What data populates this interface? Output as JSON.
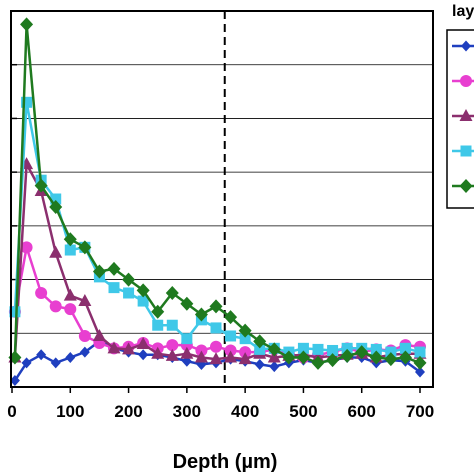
{
  "chart_data": {
    "type": "line",
    "xlabel": "Depth (µm)",
    "legend_title": "lay",
    "legend_position": "top-right",
    "xlim": [
      0,
      720
    ],
    "xticks": [
      0,
      100,
      200,
      300,
      400,
      500,
      600,
      700
    ],
    "ylim": [
      0,
      7
    ],
    "grid": true,
    "reference_line_x": 365,
    "series": [
      {
        "color": "#1f3fbf",
        "marker": "diamond-small",
        "points": [
          [
            5,
            0.12
          ],
          [
            25,
            0.45
          ],
          [
            50,
            0.6
          ],
          [
            75,
            0.45
          ],
          [
            100,
            0.55
          ],
          [
            125,
            0.65
          ],
          [
            150,
            0.85
          ],
          [
            175,
            0.72
          ],
          [
            200,
            0.65
          ],
          [
            225,
            0.6
          ],
          [
            250,
            0.6
          ],
          [
            275,
            0.55
          ],
          [
            300,
            0.48
          ],
          [
            325,
            0.42
          ],
          [
            350,
            0.45
          ],
          [
            375,
            0.52
          ],
          [
            400,
            0.48
          ],
          [
            425,
            0.42
          ],
          [
            450,
            0.38
          ],
          [
            475,
            0.45
          ],
          [
            500,
            0.5
          ],
          [
            525,
            0.45
          ],
          [
            550,
            0.5
          ],
          [
            575,
            0.55
          ],
          [
            600,
            0.55
          ],
          [
            625,
            0.45
          ],
          [
            650,
            0.5
          ],
          [
            675,
            0.48
          ],
          [
            700,
            0.28
          ]
        ]
      },
      {
        "color": "#e83fd0",
        "marker": "circle",
        "points": [
          [
            5,
            1.4
          ],
          [
            25,
            2.6
          ],
          [
            50,
            1.75
          ],
          [
            75,
            1.5
          ],
          [
            100,
            1.45
          ],
          [
            125,
            0.95
          ],
          [
            150,
            0.82
          ],
          [
            175,
            0.72
          ],
          [
            200,
            0.75
          ],
          [
            225,
            0.82
          ],
          [
            250,
            0.72
          ],
          [
            275,
            0.78
          ],
          [
            300,
            0.78
          ],
          [
            325,
            0.68
          ],
          [
            350,
            0.75
          ],
          [
            375,
            0.68
          ],
          [
            400,
            0.65
          ],
          [
            425,
            0.65
          ],
          [
            450,
            0.7
          ],
          [
            475,
            0.62
          ],
          [
            500,
            0.55
          ],
          [
            525,
            0.6
          ],
          [
            550,
            0.65
          ],
          [
            575,
            0.72
          ],
          [
            600,
            0.65
          ],
          [
            625,
            0.7
          ],
          [
            650,
            0.68
          ],
          [
            675,
            0.78
          ],
          [
            700,
            0.75
          ]
        ]
      },
      {
        "color": "#8b2f6e",
        "marker": "triangle",
        "points": [
          [
            5,
            0.55
          ],
          [
            25,
            4.15
          ],
          [
            50,
            3.65
          ],
          [
            75,
            2.5
          ],
          [
            100,
            1.7
          ],
          [
            125,
            1.6
          ],
          [
            150,
            0.95
          ],
          [
            175,
            0.72
          ],
          [
            200,
            0.7
          ],
          [
            225,
            0.8
          ],
          [
            250,
            0.62
          ],
          [
            275,
            0.58
          ],
          [
            300,
            0.62
          ],
          [
            325,
            0.55
          ],
          [
            350,
            0.52
          ],
          [
            375,
            0.55
          ],
          [
            400,
            0.52
          ],
          [
            425,
            0.62
          ],
          [
            450,
            0.55
          ],
          [
            475,
            0.58
          ],
          [
            500,
            0.6
          ],
          [
            525,
            0.55
          ],
          [
            550,
            0.58
          ],
          [
            575,
            0.6
          ],
          [
            600,
            0.62
          ],
          [
            625,
            0.55
          ],
          [
            650,
            0.6
          ],
          [
            675,
            0.62
          ],
          [
            700,
            0.62
          ]
        ]
      },
      {
        "color": "#3fc8e8",
        "marker": "square",
        "points": [
          [
            5,
            1.4
          ],
          [
            25,
            5.3
          ],
          [
            50,
            3.85
          ],
          [
            75,
            3.5
          ],
          [
            100,
            2.55
          ],
          [
            125,
            2.6
          ],
          [
            150,
            2.05
          ],
          [
            175,
            1.85
          ],
          [
            200,
            1.75
          ],
          [
            225,
            1.6
          ],
          [
            250,
            1.15
          ],
          [
            275,
            1.15
          ],
          [
            300,
            0.9
          ],
          [
            325,
            1.25
          ],
          [
            350,
            1.1
          ],
          [
            375,
            0.95
          ],
          [
            400,
            0.9
          ],
          [
            425,
            0.7
          ],
          [
            450,
            0.72
          ],
          [
            475,
            0.65
          ],
          [
            500,
            0.72
          ],
          [
            525,
            0.7
          ],
          [
            550,
            0.68
          ],
          [
            575,
            0.72
          ],
          [
            600,
            0.72
          ],
          [
            625,
            0.7
          ],
          [
            650,
            0.65
          ],
          [
            675,
            0.72
          ],
          [
            700,
            0.65
          ]
        ]
      },
      {
        "color": "#1f7a1f",
        "marker": "diamond",
        "points": [
          [
            5,
            0.55
          ],
          [
            25,
            6.75
          ],
          [
            50,
            3.75
          ],
          [
            75,
            3.35
          ],
          [
            100,
            2.75
          ],
          [
            125,
            2.6
          ],
          [
            150,
            2.15
          ],
          [
            175,
            2.2
          ],
          [
            200,
            2.0
          ],
          [
            225,
            1.8
          ],
          [
            250,
            1.4
          ],
          [
            275,
            1.75
          ],
          [
            300,
            1.55
          ],
          [
            325,
            1.35
          ],
          [
            350,
            1.5
          ],
          [
            375,
            1.3
          ],
          [
            400,
            1.05
          ],
          [
            425,
            0.85
          ],
          [
            450,
            0.7
          ],
          [
            475,
            0.55
          ],
          [
            500,
            0.55
          ],
          [
            525,
            0.45
          ],
          [
            550,
            0.5
          ],
          [
            575,
            0.58
          ],
          [
            600,
            0.65
          ],
          [
            625,
            0.55
          ],
          [
            650,
            0.52
          ],
          [
            675,
            0.55
          ],
          [
            700,
            0.45
          ]
        ]
      }
    ]
  }
}
